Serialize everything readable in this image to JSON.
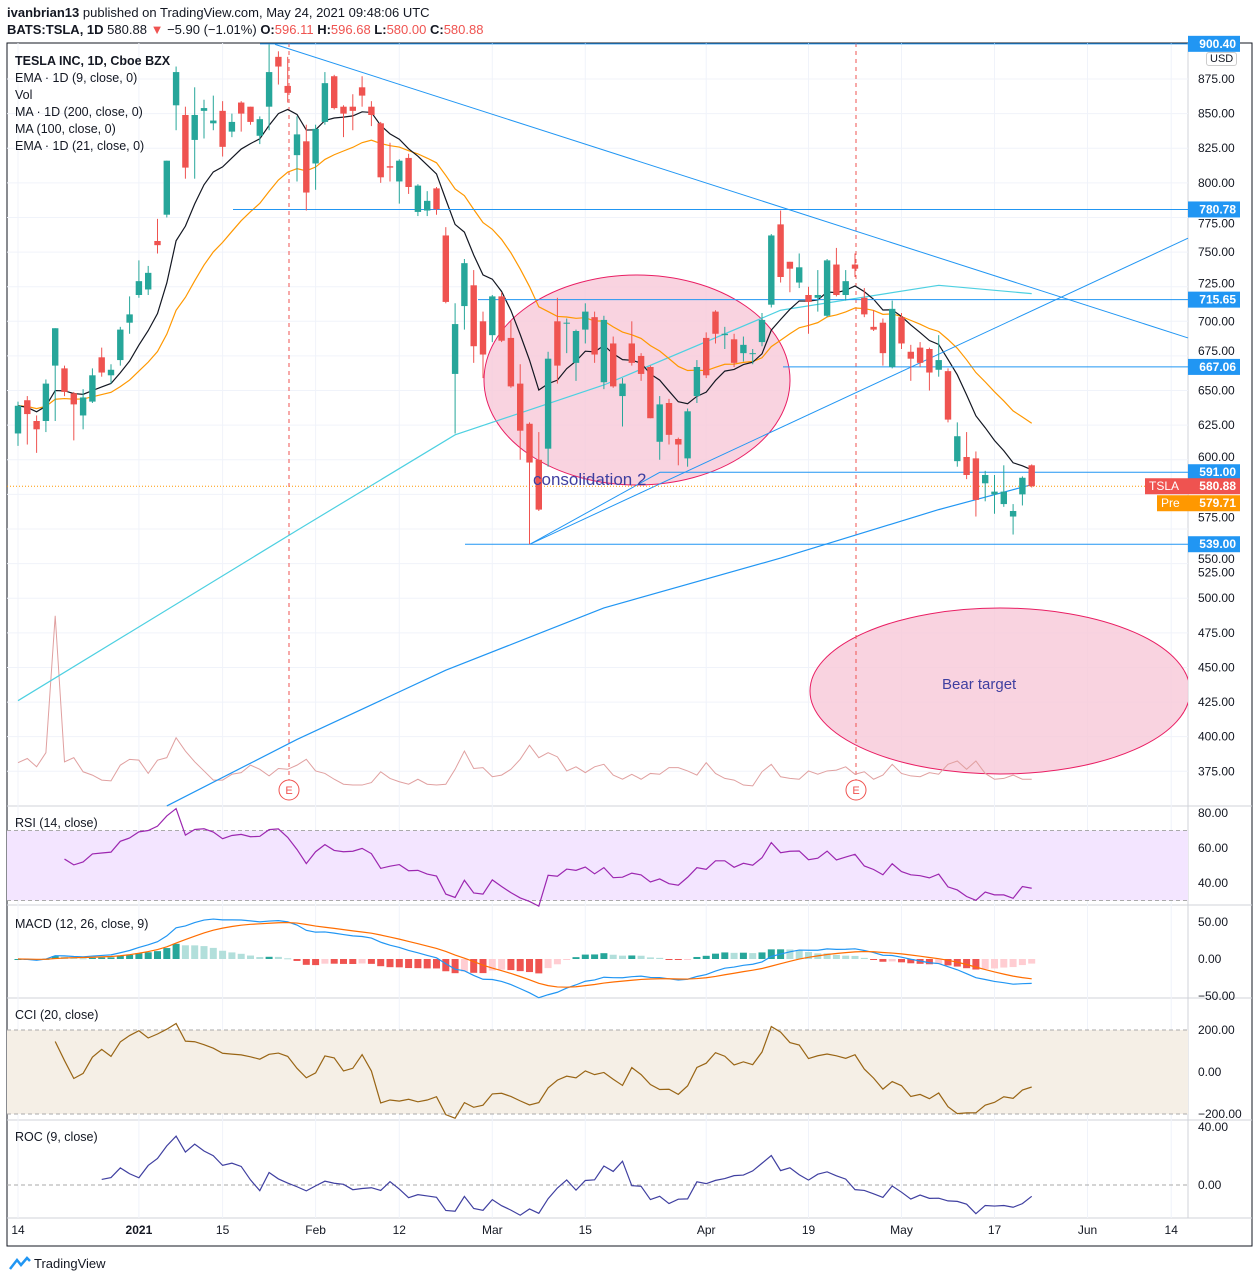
{
  "header": {
    "publisher": "ivanbrian13",
    "published_text": "published on TradingView.com, May 24, 2021 09:48:06 UTC",
    "symbol": "BATS:TSLA, 1D",
    "last": "580.88",
    "change": "−5.90 (−1.01%)",
    "o_label": "O:",
    "o": "596.11",
    "h_label": "H:",
    "h": "596.68",
    "l_label": "L:",
    "l": "580.00",
    "c_label": "C:",
    "c": "580.88"
  },
  "legend": [
    "TESLA INC, 1D, Cboe BZX",
    "EMA · 1D (9, close, 0)",
    "Vol",
    "MA · 1D (200, close, 0)",
    "MA (100, close, 0)",
    "EMA · 1D (21, close, 0)"
  ],
  "panes": {
    "rsi": "RSI (14, close)",
    "macd": "MACD (12, 26, close, 9)",
    "cci": "CCI (20, close)",
    "roc": "ROC (9, close)"
  },
  "currency": "USD",
  "footer": "TradingView",
  "annotations": {
    "consolidation": "consolidation 2",
    "bear": "Bear target",
    "earnings": "E"
  },
  "colors": {
    "up": "#26a69a",
    "down": "#ef5350",
    "ema9": "#131722",
    "ema21": "#ff9800",
    "ma100": "#4dd0e1",
    "ma200": "#2196f3",
    "drawing": "#2196f3",
    "ellipse": "#f8c8d8"
  },
  "chart_data": {
    "type": "candlestick",
    "title": "TESLA INC, 1D, Cboe BZX",
    "ylim": [
      362,
      910
    ],
    "y_ticks": [
      "875.00",
      "850.00",
      "825.00",
      "800.00",
      "775.00",
      "750.00",
      "725.00",
      "700.00",
      "675.00",
      "650.00",
      "625.00",
      "600.00",
      "575.00",
      "550.00",
      "525.00",
      "500.00",
      "475.00",
      "450.00",
      "425.00",
      "400.00",
      "375.00"
    ],
    "x_ticks": [
      {
        "label": "14",
        "i": 0
      },
      {
        "label": "2021",
        "i": 13
      },
      {
        "label": "15",
        "i": 22
      },
      {
        "label": "Feb",
        "i": 32
      },
      {
        "label": "12",
        "i": 41
      },
      {
        "label": "Mar",
        "i": 51
      },
      {
        "label": "15",
        "i": 61
      },
      {
        "label": "Apr",
        "i": 74
      },
      {
        "label": "19",
        "i": 85
      },
      {
        "label": "May",
        "i": 95
      },
      {
        "label": "17",
        "i": 105
      },
      {
        "label": "Jun",
        "i": 115
      },
      {
        "label": "14",
        "i": 124
      }
    ],
    "ohlc": [
      [
        619,
        642,
        610,
        639
      ],
      [
        643,
        646,
        611,
        633
      ],
      [
        628,
        632,
        605,
        622
      ],
      [
        628,
        658,
        620,
        655
      ],
      [
        668,
        695,
        628,
        695
      ],
      [
        666,
        668,
        646,
        649
      ],
      [
        648,
        649,
        614,
        640
      ],
      [
        632,
        651,
        622,
        645
      ],
      [
        642,
        666,
        641,
        661
      ],
      [
        674,
        681,
        660,
        663
      ],
      [
        661,
        669,
        655,
        665
      ],
      [
        672,
        696,
        668,
        694
      ],
      [
        699,
        718,
        691,
        705
      ],
      [
        719,
        744,
        717,
        729
      ],
      [
        723,
        740,
        719,
        735
      ],
      [
        758,
        774,
        749,
        755
      ],
      [
        777,
        816,
        775,
        816
      ],
      [
        856,
        884,
        838,
        880
      ],
      [
        849,
        855,
        803,
        811
      ],
      [
        831,
        869,
        803,
        849
      ],
      [
        852,
        860,
        832,
        854
      ],
      [
        843,
        863,
        838,
        845
      ],
      [
        852,
        859,
        819,
        826
      ],
      [
        837,
        850,
        833,
        844
      ],
      [
        858,
        859,
        837,
        850
      ],
      [
        855,
        855,
        842,
        844
      ],
      [
        834,
        848,
        828,
        846
      ],
      [
        855,
        900,
        838,
        880
      ],
      [
        891,
        895,
        871,
        884
      ],
      [
        870,
        891,
        858,
        865
      ],
      [
        820,
        848,
        801,
        835
      ],
      [
        830,
        842,
        780,
        793
      ],
      [
        814,
        842,
        795,
        839
      ],
      [
        844,
        880,
        842,
        872
      ],
      [
        877,
        878,
        853,
        854
      ],
      [
        855,
        856,
        833,
        850
      ],
      [
        855,
        864,
        838,
        852
      ],
      [
        869,
        877,
        855,
        863
      ],
      [
        855,
        859,
        841,
        849
      ],
      [
        843,
        844,
        800,
        804
      ],
      [
        812,
        829,
        801,
        811
      ],
      [
        801,
        817,
        785,
        816
      ],
      [
        818,
        821,
        792,
        797
      ],
      [
        779,
        799,
        776,
        798
      ],
      [
        780,
        794,
        776,
        787
      ],
      [
        796,
        797,
        777,
        781
      ],
      [
        762,
        768,
        713,
        714
      ],
      [
        662,
        713,
        619,
        698
      ],
      [
        711,
        745,
        694,
        742
      ],
      [
        726,
        737,
        670,
        682
      ],
      [
        700,
        707,
        659,
        676
      ],
      [
        690,
        719,
        685,
        718
      ],
      [
        718,
        721,
        685,
        686
      ],
      [
        688,
        700,
        652,
        653
      ],
      [
        655,
        669,
        600,
        621
      ],
      [
        626,
        627,
        539,
        598
      ],
      [
        600,
        620,
        563,
        564
      ],
      [
        608,
        678,
        595,
        673
      ],
      [
        700,
        717,
        655,
        668
      ],
      [
        699,
        702,
        677,
        699
      ],
      [
        670,
        694,
        657,
        693
      ],
      [
        694,
        713,
        684,
        707
      ],
      [
        703,
        707,
        670,
        676
      ],
      [
        656,
        704,
        651,
        701
      ],
      [
        684,
        689,
        652,
        653
      ],
      [
        646,
        659,
        624,
        655
      ],
      [
        684,
        700,
        668,
        670
      ],
      [
        675,
        677,
        657,
        662
      ],
      [
        667,
        668,
        630,
        630
      ],
      [
        613,
        646,
        600,
        640
      ],
      [
        641,
        644,
        611,
        618
      ],
      [
        615,
        616,
        596,
        611
      ],
      [
        601,
        637,
        595,
        635
      ],
      [
        646,
        672,
        641,
        667
      ],
      [
        688,
        692,
        659,
        661
      ],
      [
        707,
        708,
        684,
        691
      ],
      [
        690,
        696,
        680,
        691
      ],
      [
        687,
        691,
        667,
        670
      ],
      [
        677,
        689,
        671,
        683
      ],
      [
        677,
        680,
        669,
        677
      ],
      [
        685,
        706,
        682,
        701
      ],
      [
        712,
        763,
        710,
        762
      ],
      [
        770,
        780,
        728,
        732
      ],
      [
        743,
        743,
        721,
        738
      ],
      [
        728,
        749,
        724,
        739
      ],
      [
        719,
        725,
        691,
        714
      ],
      [
        717,
        737,
        707,
        719
      ],
      [
        704,
        745,
        703,
        744
      ],
      [
        741,
        753,
        718,
        719
      ],
      [
        719,
        737,
        715,
        729
      ],
      [
        741,
        749,
        732,
        738
      ],
      [
        717,
        724,
        703,
        705
      ],
      [
        696,
        708,
        693,
        694
      ],
      [
        699,
        702,
        668,
        677
      ],
      [
        667,
        715,
        666,
        709
      ],
      [
        703,
        706,
        680,
        684
      ],
      [
        678,
        683,
        657,
        673
      ],
      [
        681,
        685,
        667,
        670
      ],
      [
        680,
        681,
        650,
        663
      ],
      [
        665,
        690,
        660,
        672
      ],
      [
        664,
        666,
        627,
        629
      ],
      [
        599,
        627,
        595,
        617
      ],
      [
        602,
        620,
        586,
        589
      ],
      [
        601,
        606,
        559,
        571
      ],
      [
        583,
        592,
        570,
        589
      ],
      [
        575,
        589,
        561,
        577
      ],
      [
        568,
        596,
        566,
        577
      ],
      [
        559,
        568,
        546,
        563
      ],
      [
        575,
        588,
        567,
        587
      ],
      [
        596,
        596.68,
        580,
        580.88
      ]
    ],
    "volume_millions": [
      45,
      50,
      40,
      57,
      222,
      46,
      51,
      34,
      30,
      24,
      23,
      42,
      49,
      48,
      32,
      48,
      51,
      75,
      59,
      46,
      35,
      24,
      24,
      31,
      33,
      42,
      37,
      29,
      38,
      37,
      42,
      49,
      35,
      32,
      25,
      19,
      18,
      18,
      21,
      34,
      26,
      22,
      19,
      25,
      19,
      18,
      19,
      37,
      59,
      38,
      39,
      28,
      30,
      37,
      49,
      66,
      51,
      57,
      52,
      35,
      40,
      33,
      40,
      43,
      30,
      25,
      31,
      25,
      32,
      31,
      39,
      39,
      35,
      30,
      45,
      32,
      26,
      24,
      18,
      17,
      34,
      43,
      28,
      26,
      25,
      35,
      31,
      35,
      36,
      40,
      31,
      34,
      25,
      30,
      43,
      32,
      29,
      28,
      33,
      31,
      43,
      47,
      37,
      47,
      32,
      25,
      26,
      30,
      25,
      25
    ],
    "ma100": [
      [
        0,
        426
      ],
      [
        30,
        549
      ],
      [
        47,
        618
      ],
      [
        63,
        654
      ],
      [
        82,
        708
      ],
      [
        99,
        726
      ],
      [
        109,
        720
      ]
    ],
    "ma200": [
      [
        16,
        350
      ],
      [
        30,
        398
      ],
      [
        46,
        448
      ],
      [
        63,
        493
      ],
      [
        82,
        529
      ],
      [
        99,
        564
      ],
      [
        109,
        582
      ]
    ],
    "levels": [
      {
        "label": "900.40",
        "value": 900.4
      },
      {
        "label": "780.78",
        "value": 780.78
      },
      {
        "label": "715.65",
        "value": 715.65
      },
      {
        "label": "667.06",
        "value": 667.06
      },
      {
        "label": "591.00",
        "value": 591
      },
      {
        "label": "539.00",
        "value": 539
      }
    ],
    "last_price": {
      "tag": "TSLA",
      "label": "580.88",
      "value": 580.88
    },
    "premarket": {
      "tag": "Pre",
      "label": "579.71",
      "value": 579.71
    },
    "rsi_ticks": [
      "80.00",
      "60.00",
      "40.00"
    ],
    "macd_ticks": [
      "50.00",
      "0.00",
      "−50.00"
    ],
    "cci_ticks": [
      "200.00",
      "0.00",
      "−200.00"
    ],
    "roc_ticks": [
      "40.00",
      "0.00"
    ]
  }
}
